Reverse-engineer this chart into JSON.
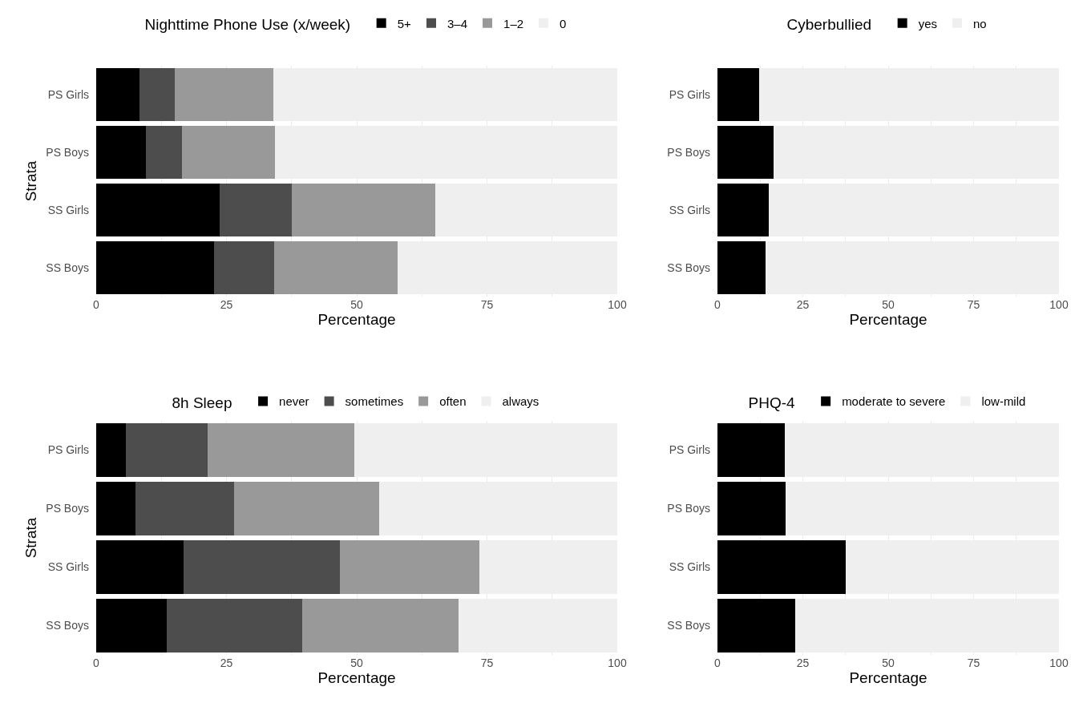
{
  "chart_data": [
    {
      "type": "bar",
      "orientation": "horizontal",
      "stacked": true,
      "legend_title": "Nighttime Phone Use (x/week)",
      "xlabel": "Percentage",
      "ylabel": "Strata",
      "categories": [
        "PS Girls",
        "PS Boys",
        "SS Girls",
        "SS Boys"
      ],
      "series": [
        {
          "name": "5+",
          "color": "#000000",
          "values": [
            8.3,
            9.6,
            23.7,
            22.6
          ]
        },
        {
          "name": "3–4",
          "color": "#4d4d4d",
          "values": [
            6.8,
            6.8,
            13.9,
            11.5
          ]
        },
        {
          "name": "1–2",
          "color": "#999999",
          "values": [
            18.9,
            17.9,
            27.5,
            23.8
          ]
        },
        {
          "name": "0",
          "color": "#efefef",
          "values": [
            66.0,
            65.7,
            34.9,
            42.1
          ]
        }
      ],
      "xlim": [
        0,
        100
      ],
      "xticks": [
        0,
        {
          "value": 12.5,
          "label": null
        },
        25,
        {
          "value": 37.5,
          "label": null
        },
        50,
        {
          "value": 62.5,
          "label": null
        },
        75,
        {
          "value": 87.5,
          "label": null
        },
        100
      ],
      "grid": true,
      "legend": "top"
    },
    {
      "type": "bar",
      "orientation": "horizontal",
      "stacked": true,
      "legend_title": "Cyberbullied",
      "xlabel": "Percentage",
      "categories": [
        "PS Girls",
        "PS Boys",
        "SS Girls",
        "SS Boys"
      ],
      "series": [
        {
          "name": "yes",
          "color": "#000000",
          "values": [
            12.2,
            16.5,
            15.0,
            14.2
          ]
        },
        {
          "name": "no",
          "color": "#efefef",
          "values": [
            87.8,
            83.5,
            85.0,
            85.8
          ]
        }
      ],
      "xlim": [
        0,
        100
      ],
      "xticks": [
        0,
        {
          "value": 12.5,
          "label": null
        },
        25,
        {
          "value": 37.5,
          "label": null
        },
        50,
        {
          "value": 62.5,
          "label": null
        },
        75,
        {
          "value": 87.5,
          "label": null
        },
        100
      ],
      "grid": true,
      "legend": "top"
    },
    {
      "type": "bar",
      "orientation": "horizontal",
      "stacked": true,
      "legend_title": "8h Sleep",
      "xlabel": "Percentage",
      "ylabel": "Strata",
      "categories": [
        "PS Girls",
        "PS Boys",
        "SS Girls",
        "SS Boys"
      ],
      "series": [
        {
          "name": "never",
          "color": "#000000",
          "values": [
            5.7,
            7.6,
            16.7,
            13.5
          ]
        },
        {
          "name": "sometimes",
          "color": "#4d4d4d",
          "values": [
            15.7,
            18.8,
            30.1,
            26.0
          ]
        },
        {
          "name": "often",
          "color": "#999999",
          "values": [
            28.2,
            27.9,
            26.7,
            30.0
          ]
        },
        {
          "name": "always",
          "color": "#efefef",
          "values": [
            50.4,
            45.7,
            26.5,
            30.5
          ]
        }
      ],
      "xlim": [
        0,
        100
      ],
      "xticks": [
        0,
        {
          "value": 12.5,
          "label": null
        },
        25,
        {
          "value": 37.5,
          "label": null
        },
        50,
        {
          "value": 62.5,
          "label": null
        },
        75,
        {
          "value": 87.5,
          "label": null
        },
        100
      ],
      "grid": true,
      "legend": "top"
    },
    {
      "type": "bar",
      "orientation": "horizontal",
      "stacked": true,
      "legend_title": "PHQ-4",
      "xlabel": "Percentage",
      "categories": [
        "PS Girls",
        "PS Boys",
        "SS Girls",
        "SS Boys"
      ],
      "series": [
        {
          "name": "moderate to severe",
          "color": "#000000",
          "values": [
            19.8,
            20.0,
            37.6,
            22.8
          ]
        },
        {
          "name": "low-mild",
          "color": "#efefef",
          "values": [
            80.2,
            80.0,
            62.4,
            77.2
          ]
        }
      ],
      "xlim": [
        0,
        100
      ],
      "xticks": [
        0,
        {
          "value": 12.5,
          "label": null
        },
        25,
        {
          "value": 37.5,
          "label": null
        },
        50,
        {
          "value": 62.5,
          "label": null
        },
        75,
        {
          "value": 87.5,
          "label": null
        },
        100
      ],
      "grid": true,
      "legend": "top"
    }
  ]
}
